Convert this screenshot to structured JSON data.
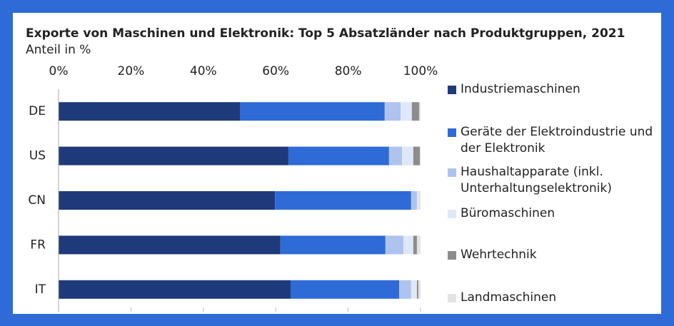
{
  "chart_data": {
    "type": "stacked_barh",
    "title": "Exporte von Maschinen und Elektronik: Top 5 Absatzländer nach Produktgruppen, 2021",
    "subtitle": "Anteil in %",
    "categories": [
      "DE",
      "US",
      "CN",
      "FR",
      "IT"
    ],
    "series": [
      {
        "name": "Industriemaschinen",
        "color": "#1f3a7a",
        "values": [
          50.1,
          63.5,
          59.8,
          61.3,
          64.1
        ]
      },
      {
        "name": "Geräte der Elektroindustrie und der Elektronik",
        "color": "#2f6bd6",
        "values": [
          40.0,
          27.8,
          37.6,
          29.0,
          30.0
        ]
      },
      {
        "name": "Haushaltapparate (inkl. Unterhaltungselektronik)",
        "color": "#aec3ee",
        "values": [
          4.4,
          3.6,
          1.6,
          5.0,
          3.3
        ]
      },
      {
        "name": "Büromaschinen",
        "color": "#dfe8f8",
        "values": [
          3.1,
          3.1,
          0.6,
          2.7,
          1.6
        ]
      },
      {
        "name": "Wehrtechnik",
        "color": "#8c8c8c",
        "values": [
          2.0,
          1.8,
          0.0,
          1.0,
          0.4
        ]
      },
      {
        "name": "Landmaschinen",
        "color": "#e3e3e3",
        "values": [
          0.4,
          0.2,
          0.4,
          1.0,
          0.6
        ]
      }
    ],
    "xlim": [
      0,
      100
    ],
    "xticks": [
      {
        "value": 0,
        "label": "0%"
      },
      {
        "value": 20,
        "label": "20%"
      },
      {
        "value": 40,
        "label": "40%"
      },
      {
        "value": 60,
        "label": "60%"
      },
      {
        "value": 80,
        "label": "80%"
      },
      {
        "value": 100,
        "label": "100%"
      }
    ],
    "legend": "right"
  }
}
